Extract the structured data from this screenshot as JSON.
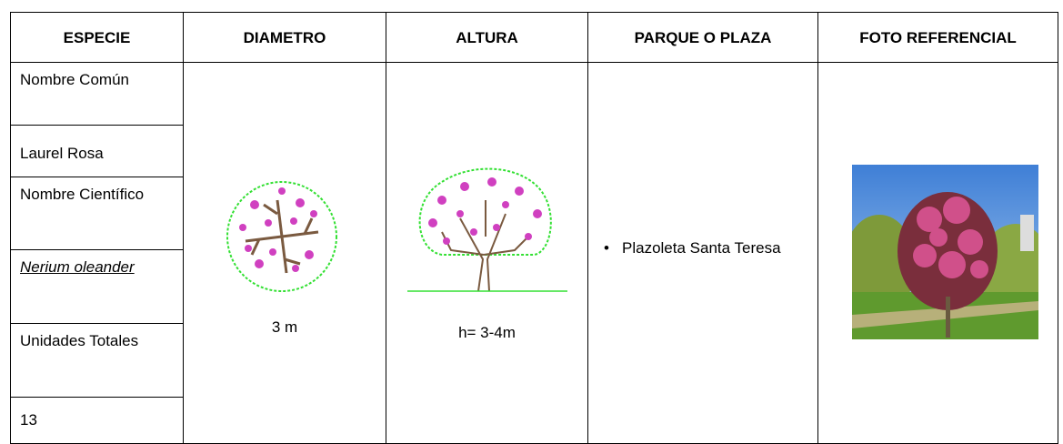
{
  "table": {
    "headers": [
      "ESPECIE",
      "DIAMETRO",
      "ALTURA",
      "PARQUE O PLAZA",
      "FOTO REFERENCIAL"
    ],
    "species_rows": [
      "Nombre Común",
      "Laurel Rosa",
      "Nombre Científico",
      "Nerium oleander",
      "Unidades Totales",
      "13"
    ],
    "diameter": "3 m",
    "height": "h= 3-4m",
    "parks": [
      "Plazoleta Santa Teresa"
    ]
  }
}
